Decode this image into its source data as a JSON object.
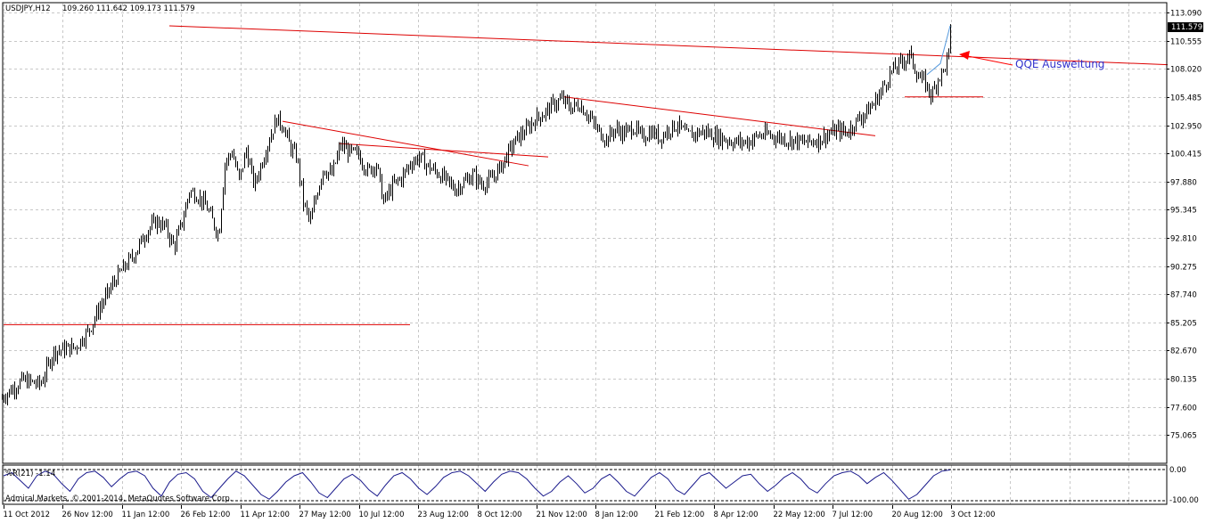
{
  "header": {
    "symbol": "USDJPY,H12",
    "ohlc": "109.260 111.642 109.173 111.579"
  },
  "price_label": "111.579",
  "annotation": {
    "text": "QQE Ausweitung",
    "color": "#3333cc",
    "arrow_color": "#ff0000"
  },
  "indicator": {
    "label": "%R(21) -1.14",
    "levels": [
      "0.00",
      "-100.00"
    ],
    "line_color": "#1a1a8c"
  },
  "footer": {
    "copyright": "Admiral Markets, © 2001-2014, MetaQuotes Software Corp."
  },
  "colors": {
    "candle": "#000000",
    "trendline": "#dd0000",
    "grid": "#c8c8c8",
    "blue_line": "#5599dd"
  },
  "chart_data": {
    "type": "candlestick",
    "symbol": "USDJPY",
    "timeframe": "H12",
    "y_ticks": [
      "113.090",
      "110.555",
      "108.020",
      "105.485",
      "102.950",
      "100.415",
      "97.880",
      "95.345",
      "92.810",
      "90.275",
      "87.740",
      "85.205",
      "82.670",
      "80.135",
      "77.600",
      "75.065"
    ],
    "ylim": [
      72.6,
      113.9
    ],
    "x_ticks": [
      "11 Oct 2012",
      "26 Nov 12:00",
      "11 Jan 12:00",
      "26 Feb 12:00",
      "11 Apr 12:00",
      "27 May 12:00",
      "10 Jul 12:00",
      "23 Aug 12:00",
      "8 Oct 12:00",
      "21 Nov 12:00",
      "8 Jan 12:00",
      "21 Feb 12:00",
      "8 Apr 12:00",
      "22 May 12:00",
      "7 Jul 12:00",
      "20 Aug 12:00",
      "3 Oct 12:00"
    ],
    "price_path": [
      [
        0,
        78.3
      ],
      [
        25,
        80.0
      ],
      [
        45,
        79.6
      ],
      [
        60,
        82.6
      ],
      [
        85,
        83.0
      ],
      [
        100,
        84.6
      ],
      [
        110,
        86.3
      ],
      [
        130,
        89.2
      ],
      [
        150,
        91.3
      ],
      [
        165,
        93.5
      ],
      [
        175,
        94.3
      ],
      [
        185,
        93.8
      ],
      [
        195,
        92.0
      ],
      [
        205,
        94.5
      ],
      [
        212,
        97.0
      ],
      [
        222,
        96.6
      ],
      [
        232,
        95.5
      ],
      [
        245,
        93.0
      ],
      [
        252,
        99.5
      ],
      [
        260,
        100.6
      ],
      [
        268,
        98.0
      ],
      [
        276,
        100.7
      ],
      [
        285,
        97.5
      ],
      [
        295,
        100.0
      ],
      [
        303,
        102.0
      ],
      [
        310,
        103.5
      ],
      [
        318,
        102.8
      ],
      [
        325,
        101.0
      ],
      [
        333,
        100.0
      ],
      [
        340,
        96.0
      ],
      [
        348,
        94.2
      ],
      [
        355,
        96.8
      ],
      [
        362,
        99.0
      ],
      [
        372,
        98.5
      ],
      [
        382,
        101.2
      ],
      [
        392,
        100.5
      ],
      [
        402,
        100.3
      ],
      [
        412,
        98.8
      ],
      [
        422,
        99.5
      ],
      [
        430,
        96.0
      ],
      [
        440,
        97.5
      ],
      [
        450,
        98.2
      ],
      [
        460,
        99.5
      ],
      [
        470,
        100.1
      ],
      [
        480,
        99.2
      ],
      [
        490,
        98.7
      ],
      [
        500,
        98.0
      ],
      [
        510,
        97.2
      ],
      [
        520,
        97.8
      ],
      [
        530,
        98.5
      ],
      [
        540,
        97.6
      ],
      [
        550,
        98.0
      ],
      [
        560,
        99.0
      ],
      [
        570,
        100.5
      ],
      [
        580,
        101.8
      ],
      [
        590,
        102.5
      ],
      [
        600,
        103.5
      ],
      [
        610,
        104.0
      ],
      [
        620,
        104.8
      ],
      [
        630,
        105.3
      ],
      [
        640,
        104.5
      ],
      [
        650,
        104.8
      ],
      [
        660,
        103.8
      ],
      [
        670,
        102.5
      ],
      [
        680,
        101.7
      ],
      [
        690,
        102.6
      ],
      [
        700,
        102.2
      ],
      [
        710,
        102.8
      ],
      [
        720,
        101.8
      ],
      [
        730,
        102.4
      ],
      [
        740,
        101.8
      ],
      [
        750,
        102.6
      ],
      [
        760,
        103.0
      ],
      [
        770,
        102.0
      ],
      [
        780,
        102.2
      ],
      [
        790,
        102.4
      ],
      [
        800,
        102.0
      ],
      [
        810,
        101.8
      ],
      [
        820,
        101.5
      ],
      [
        830,
        101.4
      ],
      [
        840,
        101.5
      ],
      [
        850,
        102.0
      ],
      [
        860,
        102.1
      ],
      [
        870,
        101.9
      ],
      [
        880,
        101.7
      ],
      [
        890,
        101.6
      ],
      [
        900,
        101.4
      ],
      [
        910,
        101.5
      ],
      [
        920,
        101.7
      ],
      [
        930,
        102.2
      ],
      [
        940,
        102.5
      ],
      [
        950,
        102.3
      ],
      [
        960,
        103.3
      ],
      [
        970,
        104.0
      ],
      [
        980,
        104.9
      ],
      [
        990,
        106.3
      ],
      [
        1000,
        107.8
      ],
      [
        1010,
        108.5
      ],
      [
        1020,
        109.3
      ],
      [
        1030,
        107.3
      ],
      [
        1037,
        106.8
      ],
      [
        1045,
        105.6
      ],
      [
        1052,
        107.2
      ],
      [
        1058,
        107.8
      ],
      [
        1064,
        109.3
      ],
      [
        1066,
        111.5
      ]
    ],
    "blue_line": [
      [
        1040,
        107.5
      ],
      [
        1055,
        108.5
      ],
      [
        1066,
        111.9
      ]
    ],
    "trendlines": [
      {
        "p1": [
          190,
          111.9
        ],
        "p2": [
          1310,
          108.4
        ]
      },
      {
        "p1": [
          4,
          85.0
        ],
        "p2": [
          460,
          85.0
        ]
      },
      {
        "p1": [
          317,
          103.3
        ],
        "p2": [
          593,
          99.3
        ]
      },
      {
        "p1": [
          380,
          101.3
        ],
        "p2": [
          615,
          100.1
        ]
      },
      {
        "p1": [
          633,
          105.5
        ],
        "p2": [
          982,
          102.0
        ]
      },
      {
        "p1": [
          1015,
          105.5
        ],
        "p2": [
          1103,
          105.5
        ]
      }
    ],
    "wr_series": [
      -20,
      -10,
      -35,
      -60,
      -20,
      -5,
      -15,
      -45,
      -70,
      -30,
      -10,
      -5,
      -25,
      -55,
      -30,
      -10,
      -5,
      -20,
      -60,
      -85,
      -40,
      -15,
      -10,
      -30,
      -70,
      -90,
      -60,
      -30,
      -5,
      -20,
      -50,
      -80,
      -95,
      -70,
      -40,
      -20,
      -10,
      -40,
      -75,
      -90,
      -60,
      -30,
      -15,
      -35,
      -65,
      -85,
      -50,
      -20,
      -10,
      -30,
      -60,
      -80,
      -55,
      -25,
      -10,
      -5,
      -20,
      -45,
      -70,
      -40,
      -15,
      -5,
      -10,
      -30,
      -60,
      -85,
      -70,
      -40,
      -20,
      -45,
      -75,
      -60,
      -30,
      -15,
      -40,
      -70,
      -85,
      -55,
      -25,
      -10,
      -30,
      -65,
      -80,
      -50,
      -20,
      -10,
      -35,
      -60,
      -40,
      -20,
      -15,
      -45,
      -70,
      -50,
      -25,
      -10,
      -30,
      -60,
      -75,
      -45,
      -20,
      -10,
      -5,
      -20,
      -45,
      -25,
      -10,
      -35,
      -65,
      -95,
      -80,
      -50,
      -20,
      -5,
      -1
    ],
    "wr_ylim": [
      -100,
      0
    ]
  }
}
